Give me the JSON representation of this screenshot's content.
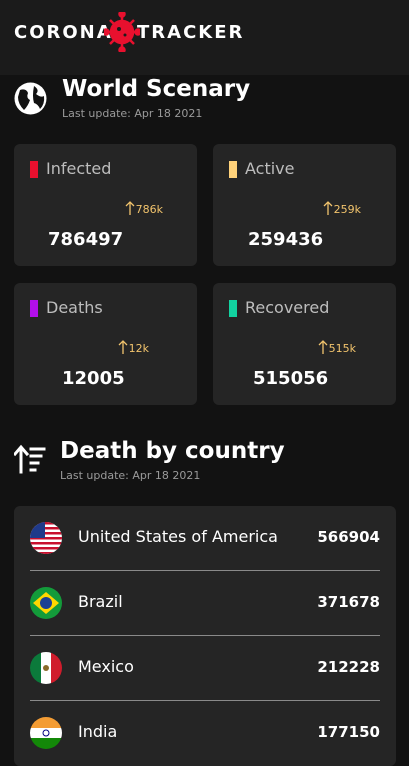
{
  "header": {
    "brand_left": "CORONA",
    "brand_right": "TRACKER"
  },
  "world": {
    "title": "World Scenary",
    "subtitle": "Last update: Apr 18 2021",
    "cards": [
      {
        "label": "Infected",
        "delta": "786k",
        "value": 786497,
        "color": "#e8102e"
      },
      {
        "label": "Active",
        "delta": "259k",
        "value": 259436,
        "color": "#ffd27a"
      },
      {
        "label": "Deaths",
        "delta": "12k",
        "value": 12005,
        "color": "#b20fea"
      },
      {
        "label": "Recovered",
        "delta": "515k",
        "value": 515056,
        "color": "#12d2a0"
      }
    ]
  },
  "deaths": {
    "title": "Death by country",
    "subtitle": "Last update: Apr 18 2021",
    "rows": [
      {
        "country": "United States of America",
        "value": 566904
      },
      {
        "country": "Brazil",
        "value": 371678
      },
      {
        "country": "Mexico",
        "value": 212228
      },
      {
        "country": "India",
        "value": 177150
      }
    ]
  }
}
